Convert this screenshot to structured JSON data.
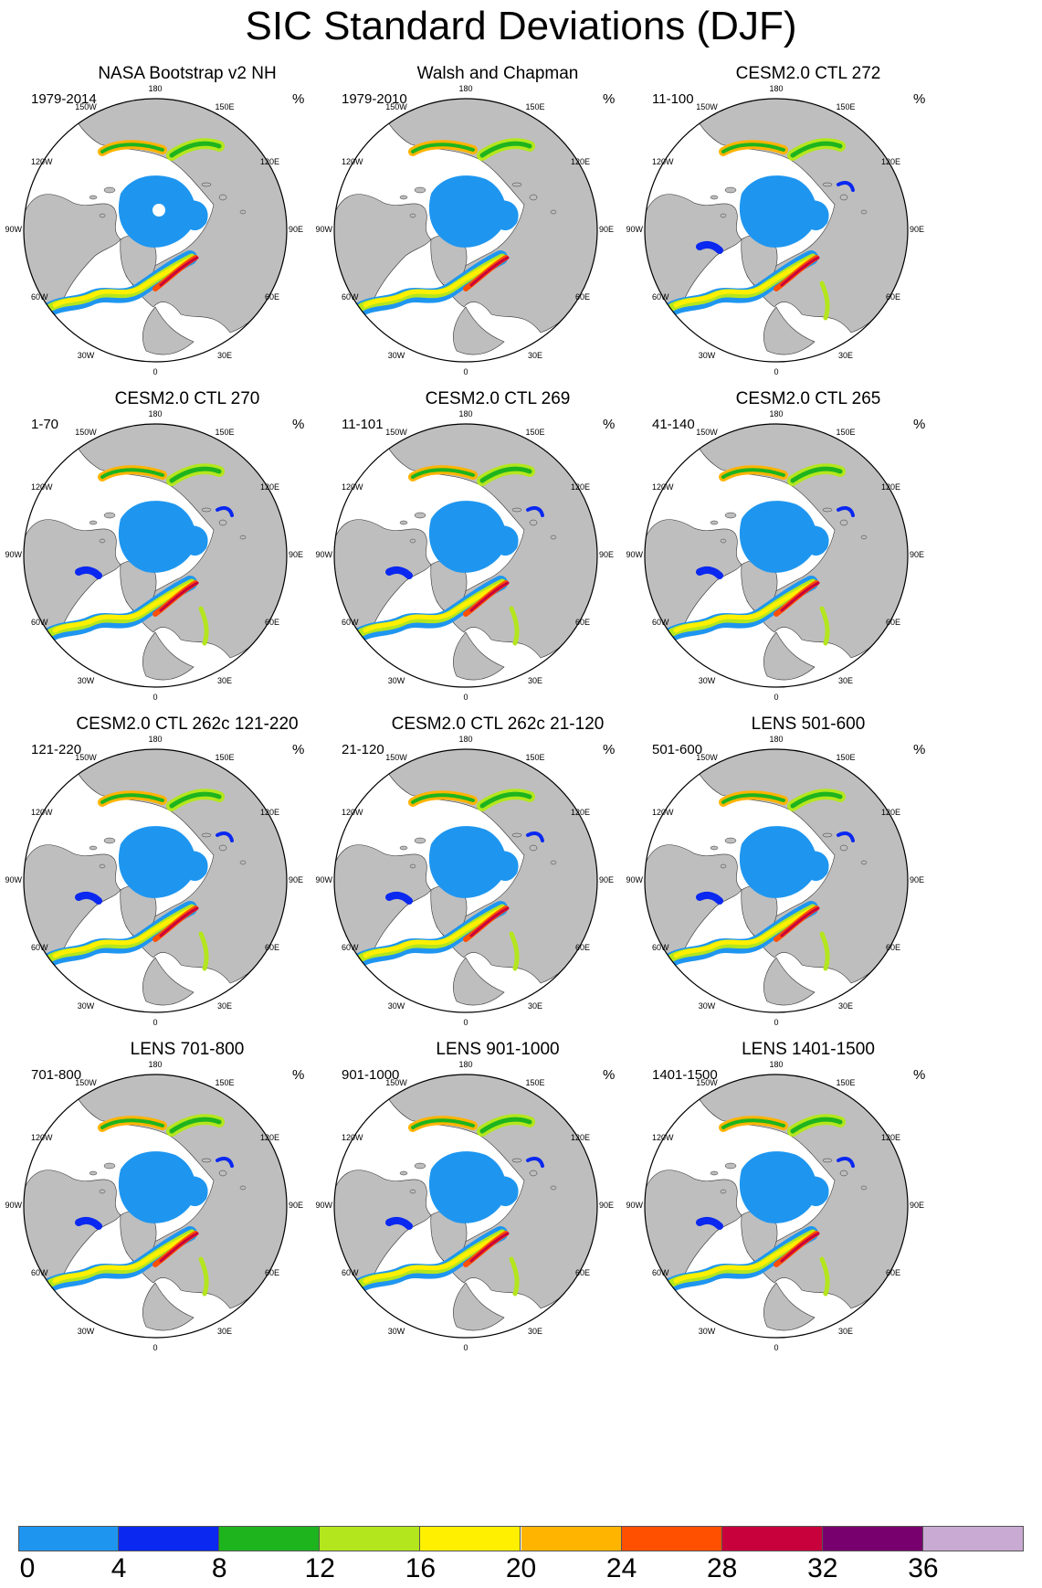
{
  "figure": {
    "title": "SIC Standard Deviations (DJF)"
  },
  "panels": [
    {
      "title": "NASA Bootstrap v2 NH",
      "period": "1979-2014",
      "units": "%"
    },
    {
      "title": "Walsh and Chapman",
      "period": "1979-2010",
      "units": "%"
    },
    {
      "title": "CESM2.0 CTL 272",
      "period": "11-100",
      "units": "%"
    },
    {
      "title": "CESM2.0 CTL 270",
      "period": "1-70",
      "units": "%"
    },
    {
      "title": "CESM2.0 CTL 269",
      "period": "11-101",
      "units": "%"
    },
    {
      "title": "CESM2.0 CTL 265",
      "period": "41-140",
      "units": "%"
    },
    {
      "title": "CESM2.0 CTL 262c 121-220",
      "period": "121-220",
      "units": "%"
    },
    {
      "title": "CESM2.0 CTL 262c 21-120",
      "period": "21-120",
      "units": "%"
    },
    {
      "title": "LENS 501-600",
      "period": "501-600",
      "units": "%"
    },
    {
      "title": "LENS 701-800",
      "period": "701-800",
      "units": "%"
    },
    {
      "title": "LENS 901-1000",
      "period": "901-1000",
      "units": "%"
    },
    {
      "title": "LENS 1401-1500",
      "period": "1401-1500",
      "units": "%"
    }
  ],
  "map_labels": {
    "lon_180": "180",
    "lon_150w": "150W",
    "lon_150e": "150E",
    "lon_120w": "120W",
    "lon_120e": "120E",
    "lon_90w": "90W",
    "lon_90e": "90E",
    "lon_60w": "60W",
    "lon_60e": "60E",
    "lon_30w": "30W",
    "lon_30e": "30E",
    "lon_0": "0"
  },
  "colors": {
    "land": "#bebebe",
    "ocean": "#ffffff",
    "low_variability_ice": "#1e96f0"
  },
  "colorbar": {
    "ticks": [
      "0",
      "4",
      "8",
      "12",
      "16",
      "20",
      "24",
      "28",
      "32",
      "36"
    ],
    "colors": [
      "#1e96f0",
      "#0a28f0",
      "#1eb41e",
      "#b4e61e",
      "#fff000",
      "#ffb400",
      "#ff5000",
      "#c8003c",
      "#78006e",
      "#c8aad2"
    ]
  }
}
